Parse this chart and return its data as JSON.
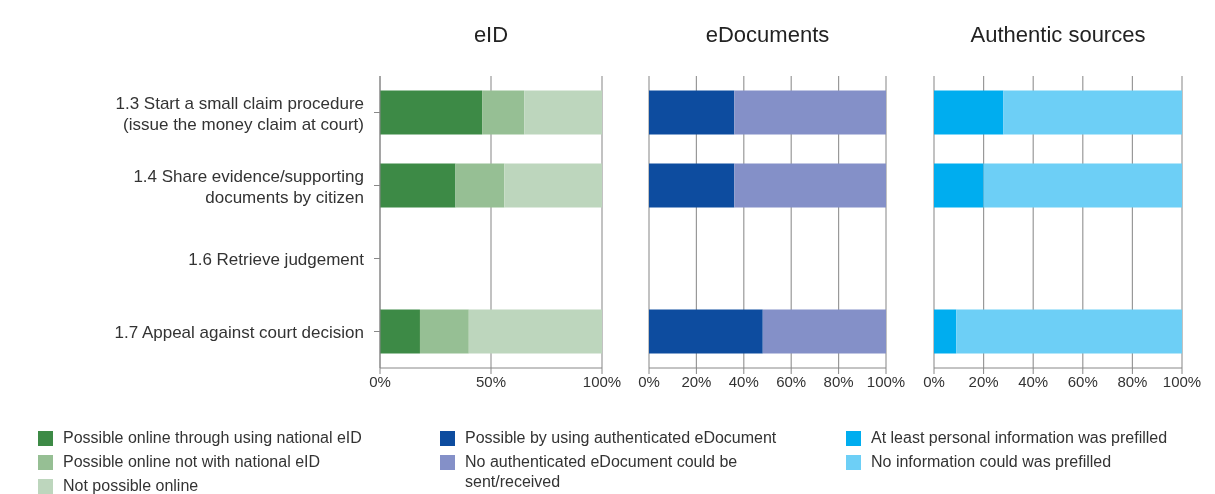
{
  "chart_data": [
    {
      "type": "bar",
      "title": "eID",
      "orientation": "horizontal",
      "stacked": true,
      "categories": [
        "1.3 Start a small claim procedure (issue the money claim at court)",
        "1.4 Share evidence/supporting documents by citizen",
        "1.6 Retrieve judgement",
        "1.7 Appeal against court decision"
      ],
      "series": [
        {
          "name": "Possible online through using national eID",
          "color": "#3d8a46",
          "values": [
            46,
            34,
            null,
            18
          ]
        },
        {
          "name": "Possible online not with national eID",
          "color": "#96bf94",
          "values": [
            19,
            22,
            null,
            22
          ]
        },
        {
          "name": "Not possible online",
          "color": "#bdd6bd",
          "values": [
            35,
            44,
            null,
            60
          ]
        }
      ],
      "xlim": [
        0,
        100
      ],
      "xticks": [
        {
          "value": 0,
          "label": "0%"
        },
        {
          "value": 50,
          "label": "50%"
        },
        {
          "value": 100,
          "label": "100%"
        }
      ],
      "grid": "x",
      "legend": "bottom"
    },
    {
      "type": "bar",
      "title": "eDocuments",
      "orientation": "horizontal",
      "stacked": true,
      "categories": [
        null,
        null,
        null,
        null
      ],
      "series": [
        {
          "name": "Possible by using authenticated eDocument",
          "color": "#0d4c9f",
          "values": [
            36,
            36,
            null,
            48
          ]
        },
        {
          "name": "No authenticated eDocument could be sent/received",
          "color": "#8490c8",
          "values": [
            64,
            64,
            null,
            52
          ]
        }
      ],
      "xlim": [
        0,
        100
      ],
      "xticks": [
        {
          "value": 0,
          "label": "0%"
        },
        {
          "value": 20,
          "label": "20%"
        },
        {
          "value": 40,
          "label": "40%"
        },
        {
          "value": 60,
          "label": "60%"
        },
        {
          "value": 80,
          "label": "80%"
        },
        {
          "value": 100,
          "label": "100%"
        }
      ],
      "grid": "x",
      "legend": "bottom",
      "tick_labels": "x"
    },
    {
      "type": "bar",
      "title": "Authentic sources",
      "orientation": "horizontal",
      "stacked": true,
      "categories": [
        null,
        null,
        null,
        null
      ],
      "series": [
        {
          "name": "At least personal information was prefilled",
          "color": "#00adef",
          "values": [
            28,
            20,
            null,
            9
          ]
        },
        {
          "name": "No information could was prefilled",
          "color": "#6dcff6",
          "values": [
            72,
            80,
            null,
            91
          ]
        }
      ],
      "xlim": [
        0,
        100
      ],
      "xticks": [
        {
          "value": 0,
          "label": "0%"
        },
        {
          "value": 20,
          "label": "20%"
        },
        {
          "value": 40,
          "label": "40%"
        },
        {
          "value": 60,
          "label": "60%"
        },
        {
          "value": 80,
          "label": "80%"
        },
        {
          "value": 100,
          "label": "100%"
        }
      ],
      "grid": "x",
      "legend": "bottom",
      "tick_labels": "x"
    }
  ]
}
